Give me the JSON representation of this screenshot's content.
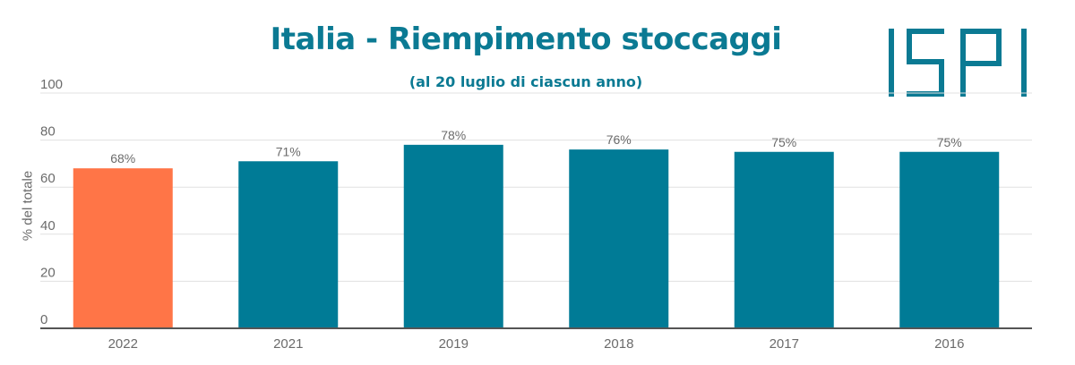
{
  "chart_data": {
    "type": "bar",
    "title": "Italia - Riempimento stoccaggi",
    "subtitle": "(al 20 luglio di ciascun anno)",
    "ylabel": "% del totale",
    "xlabel": "",
    "ylim": [
      0,
      100
    ],
    "yticks": [
      0,
      20,
      40,
      60,
      80,
      100
    ],
    "grid": true,
    "categories": [
      "2022",
      "2021",
      "2019",
      "2018",
      "2017",
      "2016"
    ],
    "values": [
      68,
      71,
      78,
      76,
      75,
      75
    ],
    "data_labels": [
      "68%",
      "71%",
      "78%",
      "76%",
      "75%",
      "75%"
    ],
    "highlight_index": 0,
    "colors": {
      "highlight": "#ff7547",
      "default": "#007b96",
      "title": "#0b7a93",
      "grid": "#e0e0e0",
      "axis": "#555555"
    }
  },
  "logo": {
    "text": "ISPI",
    "color": "#0b7a93"
  }
}
